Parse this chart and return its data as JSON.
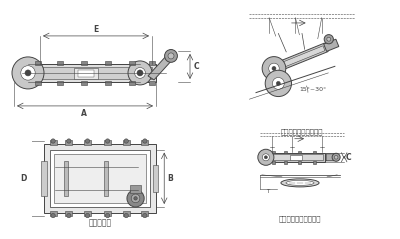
{
  "bg_color": "#e8e8e8",
  "line_color": "#444444",
  "fig_bg": "#d8d8d8",
  "label_A": "A",
  "label_E": "E",
  "label_C": "C",
  "label_D": "D",
  "label_B": "B",
  "caption_bottom_left": "外形尺寸图",
  "caption_top_right": "安装示意图（倾斜式）",
  "caption_bottom_right": "安装示意图（水平式）",
  "angle_label": "15°~30°",
  "lw_main": 0.7,
  "lw_thin": 0.4,
  "lw_dim": 0.5,
  "fs_label": 5.5,
  "fs_caption": 5.0
}
